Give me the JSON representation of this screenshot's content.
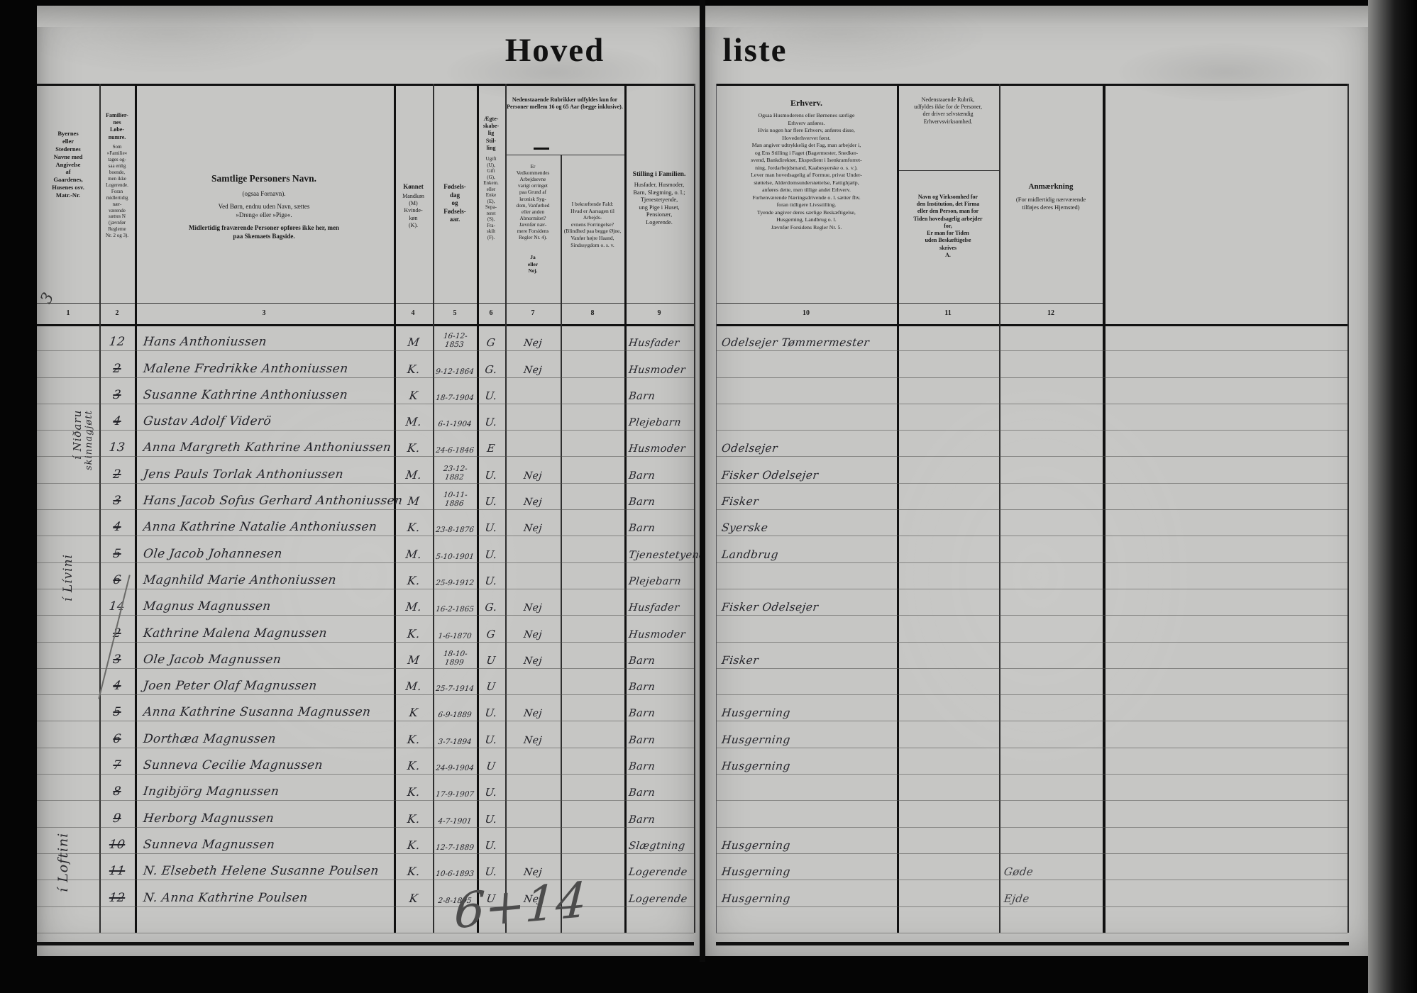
{
  "title": {
    "left": "Hoved",
    "right": "liste"
  },
  "header": {
    "col1": "Byernes\neller\nStedernes\nNavne med\nAngivelse\naf\nGaardenes,\nHusenes osv.\nMatr.-Nr.",
    "col2_title": "Familier-\nnes\nLøbe-\nnumre.",
    "col2_body": "Som\n»Familie«\ntages og-\nsaa enlig\nboende,\nmen ikke\nLogerende.\nForan\nmidlertidig\nnær-\nværende\nsættes N\n(jævnfør\nReglerne\nNr. 2 og 3).",
    "col3_title": "Samtlige Personers Navn.",
    "col3_sub": "(ogsaa Fornavn).",
    "col3_body1": "Ved Børn, endnu uden Navn, sættes\n»Dreng« eller »Pige«.",
    "col3_body2": "Midlertidig fraværende Personer opføres ikke her, men\npaa Skemaets Bagside.",
    "col4_title": "Kønnet",
    "col4_body": "Mandkøn\n(M)\nKvinde-\nkøn\n(K).",
    "col5": "Fødsels-\ndag\nog\nFødsels-\naar.",
    "col6_title": "Ægte-\nskabe-\nlig\nStil-\nling",
    "col6_body": "Ugift\n(U),\nGift\n(G),\nEnkem.\neller\nEnke\n(E),\nSepa-\nreret\n(S),\nFra-\nskilt\n(F).",
    "span78": "Nedenstaaende Rubrikker udfyldes kun for\nPersoner mellem 16 og 65 Aar (begge inklusive).",
    "col7_body": "Er\nVedkommendes\nArbejdsevne\nvarigt orringet\npaa Grund af\nkronisk Syg-\ndom, Vanførhed\neller anden\nAbnormitet?\nJævnfør nær-\nmere Forsidens\nRegler Nr. 4).",
    "col7_janej": "Ja\neller\nNej.",
    "col8": "I bekræftende Fald:\nHvad er Aarsagen til Arbejds-\nevnens Forringelse?\n(Blindhed paa begge Øjne,\nVanfør højre Haand,\nSindssygdom o. s. v.",
    "col9_title": "Stilling i Familien.",
    "col9_body": "Husfader, Husmoder,\nBarn, Slægtning, o. l.;\nTjenestetyende,\nung Pige i Huset,\nPensionær,\nLogerende.",
    "col10_title": "Erhverv.",
    "col10_body": "Ogsaa Husmoderens eller Børnenes særlige\nErhverv anføres.\nHvis nogen har flere Erhverv, anføres disse,\nHovederhvervet først.\nMan angiver udtrykkelig det Fag, man arbejder i,\nog Ens Stilling i Faget (Bagermester, Snedker-\nsvend, Bankdirektør, Ekspedient i Isenkramforret-\nning, Jordarbejdsmand, Kaabesyerske o. s. v.).\nLever man hovedsagelig af Formue, privat Under-\nstøttelse, Alderdomsunderstøttelse, Fattighjælp,\nanføres dette, men tillige andet Erhverv.\nForhenværende Næringsdrivende o. l. sætter fhv.\nforan tidligere Livsstilling.\nTyende angiver deres særlige Beskæftigelse,\nHusgerning, Landbrug o. l.\nJævnfør Forsidens Regler Nr. 5.",
    "col11_top": "Nedenstaaende Rubrik,\nudfyldes ikke for de Personer,\nder driver selvstændig\nErhvervsvirksomhed.",
    "col11_main": "Navn og Virksomhed for\nden Institution, det Firma\neller den Person, man for\nTiden hovedsagelig arbejder\nfor,\nEr man for Tiden\nuden Beskæftigelse\nskrives\nA.",
    "col12_title": "Anmærkning",
    "col12_body": "(For midlertidig nærværende\ntilføjes deres Hjemsted)"
  },
  "numbers": [
    "1",
    "2",
    "3",
    "4",
    "5",
    "6",
    "7",
    "8",
    "9",
    "10",
    "11",
    "12"
  ],
  "margin": {
    "matr_no": "3",
    "group1_line1": "í Niðaru",
    "group1_line2": "skinnagjøtt",
    "group2": "í Lívini",
    "group3": "í Loftini"
  },
  "annotations": {
    "bottom_pencil": "6+14"
  },
  "rows": [
    {
      "no": "12",
      "struck": false,
      "name": "Hans Anthoniussen",
      "sex": "M",
      "born": "16-12-1853",
      "civil": "G",
      "able": "Nej",
      "family": "Husfader",
      "occupation": "Odelsejer Tømmermester",
      "remark": ""
    },
    {
      "no": "2",
      "struck": true,
      "name": "Malene Fredrikke Anthoniussen",
      "sex": "K.",
      "born": "9-12-1864",
      "civil": "G.",
      "able": "Nej",
      "family": "Husmoder",
      "occupation": "",
      "remark": ""
    },
    {
      "no": "3",
      "struck": true,
      "name": "Susanne Kathrine Anthoniussen",
      "sex": "K",
      "born": "18-7-1904",
      "civil": "U.",
      "able": "",
      "family": "Barn",
      "occupation": "",
      "remark": ""
    },
    {
      "no": "4",
      "struck": true,
      "name": "Gustav Adolf Viderö",
      "sex": "M.",
      "born": "6-1-1904",
      "civil": "U.",
      "able": "",
      "family": "Plejebarn",
      "occupation": "",
      "remark": ""
    },
    {
      "no": "13",
      "struck": false,
      "name": "Anna Margreth Kathrine Anthoniussen",
      "sex": "K.",
      "born": "24-6-1846",
      "civil": "E",
      "able": "",
      "family": "Husmoder",
      "occupation": "Odelsejer",
      "remark": ""
    },
    {
      "no": "2",
      "struck": true,
      "name": "Jens Pauls Torlak Anthoniussen",
      "sex": "M.",
      "born": "23-12-1882",
      "civil": "U.",
      "able": "Nej",
      "family": "Barn",
      "occupation": "Fisker Odelsejer",
      "remark": ""
    },
    {
      "no": "3",
      "struck": true,
      "name": "Hans Jacob Sofus Gerhard Anthoniussen",
      "sex": "M",
      "born": "10-11-1886",
      "civil": "U.",
      "able": "Nej",
      "family": "Barn",
      "occupation": "Fisker",
      "remark": ""
    },
    {
      "no": "4",
      "struck": true,
      "name": "Anna Kathrine Natalie Anthoniussen",
      "sex": "K.",
      "born": "23-8-1876",
      "civil": "U.",
      "able": "Nej",
      "family": "Barn",
      "occupation": "Syerske",
      "remark": ""
    },
    {
      "no": "5",
      "struck": true,
      "name": "Ole Jacob Johannesen",
      "sex": "M.",
      "born": "5-10-1901",
      "civil": "U.",
      "able": "",
      "family": "Tjenestetyende",
      "occupation": "Landbrug",
      "remark": ""
    },
    {
      "no": "6",
      "struck": true,
      "name": "Magnhild Marie Anthoniussen",
      "sex": "K.",
      "born": "25-9-1912",
      "civil": "U.",
      "able": "",
      "family": "Plejebarn",
      "occupation": "",
      "remark": ""
    },
    {
      "no": "14",
      "struck": false,
      "name": "Magnus Magnussen",
      "sex": "M.",
      "born": "16-2-1865",
      "civil": "G.",
      "able": "Nej",
      "family": "Husfader",
      "occupation": "Fisker Odelsejer",
      "remark": ""
    },
    {
      "no": "2",
      "struck": true,
      "name": "Kathrine Malena Magnussen",
      "sex": "K.",
      "born": "1-6-1870",
      "civil": "G",
      "able": "Nej",
      "family": "Husmoder",
      "occupation": "",
      "remark": ""
    },
    {
      "no": "3",
      "struck": true,
      "name": "Ole Jacob Magnussen",
      "sex": "M",
      "born": "18-10-1899",
      "civil": "U",
      "able": "Nej",
      "family": "Barn",
      "occupation": "Fisker",
      "remark": ""
    },
    {
      "no": "4",
      "struck": true,
      "name": "Joen Peter Olaf Magnussen",
      "sex": "M.",
      "born": "25-7-1914",
      "civil": "U",
      "able": "",
      "family": "Barn",
      "occupation": "",
      "remark": ""
    },
    {
      "no": "5",
      "struck": true,
      "name": "Anna Kathrine Susanna Magnussen",
      "sex": "K",
      "born": "6-9-1889",
      "civil": "U.",
      "able": "Nej",
      "family": "Barn",
      "occupation": "Husgerning",
      "remark": ""
    },
    {
      "no": "6",
      "struck": true,
      "name": "Dorthæa Magnussen",
      "sex": "K.",
      "born": "3-7-1894",
      "civil": "U.",
      "able": "Nej",
      "family": "Barn",
      "occupation": "Husgerning",
      "remark": ""
    },
    {
      "no": "7",
      "struck": true,
      "name": "Sunneva Cecilie Magnussen",
      "sex": "K.",
      "born": "24-9-1904",
      "civil": "U",
      "able": "",
      "family": "Barn",
      "occupation": "Husgerning",
      "remark": ""
    },
    {
      "no": "8",
      "struck": true,
      "name": "Ingibjörg Magnussen",
      "sex": "K.",
      "born": "17-9-1907",
      "civil": "U.",
      "able": "",
      "family": "Barn",
      "occupation": "",
      "remark": ""
    },
    {
      "no": "9",
      "struck": true,
      "name": "Herborg Magnussen",
      "sex": "K.",
      "born": "4-7-1901",
      "civil": "U.",
      "able": "",
      "family": "Barn",
      "occupation": "",
      "remark": ""
    },
    {
      "no": "10",
      "struck": true,
      "name": "Sunneva Magnussen",
      "sex": "K.",
      "born": "12-7-1889",
      "civil": "U.",
      "able": "",
      "family": "Slægtning",
      "occupation": "Husgerning",
      "remark": ""
    },
    {
      "no": "11",
      "struck": true,
      "name": "N. Elsebeth Helene Susanne Poulsen",
      "sex": "K.",
      "born": "10-6-1893",
      "civil": "U.",
      "able": "Nej",
      "family": "Logerende",
      "occupation": "Husgerning",
      "remark": "Gøde"
    },
    {
      "no": "12",
      "struck": true,
      "name": "N. Anna Kathrine Poulsen",
      "sex": "K",
      "born": "2-8-1895",
      "civil": "U",
      "able": "Nej",
      "family": "Logerende",
      "occupation": "Husgerning",
      "remark": "Ejde"
    },
    {
      "no": "",
      "struck": false,
      "name": "",
      "sex": "",
      "born": "",
      "civil": "",
      "able": "",
      "family": "",
      "occupation": "",
      "remark": ""
    }
  ]
}
